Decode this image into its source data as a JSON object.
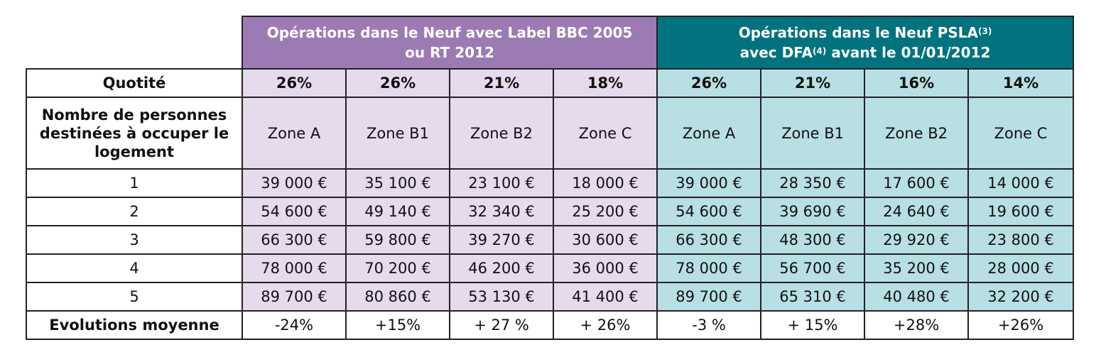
{
  "header": {
    "group1": {
      "line1": "Opérations dans le Neuf avec Label BBC 2005",
      "line2": "ou RT 2012"
    },
    "group2": {
      "line1_pre": "Opérations dans le Neuf PSLA",
      "line1_sup": "(3)",
      "line2_pre": "avec DFA",
      "line2_sup": "(4)",
      "line2_post": " avant le 01/01/2012"
    }
  },
  "row_labels": {
    "quotite": "Quotité",
    "nombre": "Nombre de personnes destinées à occuper le logement",
    "evolutions": "Evolutions moyenne"
  },
  "quotites": [
    "26%",
    "26%",
    "21%",
    "18%",
    "26%",
    "21%",
    "16%",
    "14%"
  ],
  "zones": [
    "Zone A",
    "Zone B1",
    "Zone B2",
    "Zone C",
    "Zone A",
    "Zone B1",
    "Zone B2",
    "Zone C"
  ],
  "rows": [
    {
      "persons": "1",
      "values": [
        "39 000 €",
        "35 100 €",
        "23 100 €",
        "18 000 €",
        "39 000 €",
        "28 350 €",
        "17 600 €",
        "14 000 €"
      ]
    },
    {
      "persons": "2",
      "values": [
        "54 600 €",
        "49 140 €",
        "32 340 €",
        "25 200 €",
        "54 600 €",
        "39 690 €",
        "24 640 €",
        "19 600 €"
      ]
    },
    {
      "persons": "3",
      "values": [
        "66 300 €",
        "59 800 €",
        "39 270 €",
        "30 600 €",
        "66 300 €",
        "48 300 €",
        "29 920 €",
        "23 800 €"
      ]
    },
    {
      "persons": "4",
      "values": [
        "78 000 €",
        "70 200 €",
        "46 200 €",
        "36 000 €",
        "78 000 €",
        "56 700 €",
        "35 200 €",
        "28 000 €"
      ]
    },
    {
      "persons": "5",
      "values": [
        "89 700 €",
        "80 860 €",
        "53 130 €",
        "41 400 €",
        "89 700 €",
        "65 310 €",
        "40 480 €",
        "32 200 €"
      ]
    }
  ],
  "evolutions": [
    "-24%",
    "+15%",
    "+ 27 %",
    "+ 26%",
    "-3 %",
    "+ 15%",
    "+28%",
    "+26%"
  ],
  "colors": {
    "purple_header": "#9c7bb5",
    "teal_header": "#00737f",
    "purple_light": "#e6daed",
    "teal_light": "#b7dfe4"
  }
}
